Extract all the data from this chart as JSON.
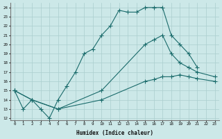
{
  "xlabel": "Humidex (Indice chaleur)",
  "bg_color": "#cce8e8",
  "grid_color": "#aacece",
  "line_color": "#1a6b6b",
  "xlim": [
    -0.5,
    23.5
  ],
  "ylim": [
    11.8,
    24.5
  ],
  "yticks": [
    12,
    13,
    14,
    15,
    16,
    17,
    18,
    19,
    20,
    21,
    22,
    23,
    24
  ],
  "xticks": [
    0,
    1,
    2,
    3,
    4,
    5,
    6,
    7,
    8,
    9,
    10,
    11,
    12,
    13,
    14,
    15,
    16,
    17,
    18,
    19,
    20,
    21,
    22,
    23
  ],
  "line1_x": [
    0,
    1,
    2,
    3,
    4,
    5,
    6,
    7,
    8,
    9,
    10,
    11,
    12,
    13,
    14,
    15,
    16,
    17,
    18,
    19,
    20,
    21
  ],
  "line1_y": [
    15,
    13,
    14,
    13,
    12,
    14,
    15.5,
    17,
    19,
    19.5,
    21,
    22,
    23.7,
    23.5,
    23.5,
    24,
    24,
    24,
    21,
    20,
    19,
    17.5
  ],
  "line2_x": [
    0,
    2,
    5,
    10,
    15,
    16,
    17,
    18,
    19,
    20,
    21,
    23
  ],
  "line2_y": [
    15,
    14,
    13,
    15,
    20,
    20.5,
    21,
    19,
    18,
    17.5,
    17,
    16.5
  ],
  "line3_x": [
    0,
    2,
    5,
    10,
    15,
    16,
    17,
    18,
    19,
    20,
    21,
    23
  ],
  "line3_y": [
    15,
    14,
    13,
    14,
    16,
    16.2,
    16.5,
    16.5,
    16.7,
    16.5,
    16.3,
    16.0
  ]
}
